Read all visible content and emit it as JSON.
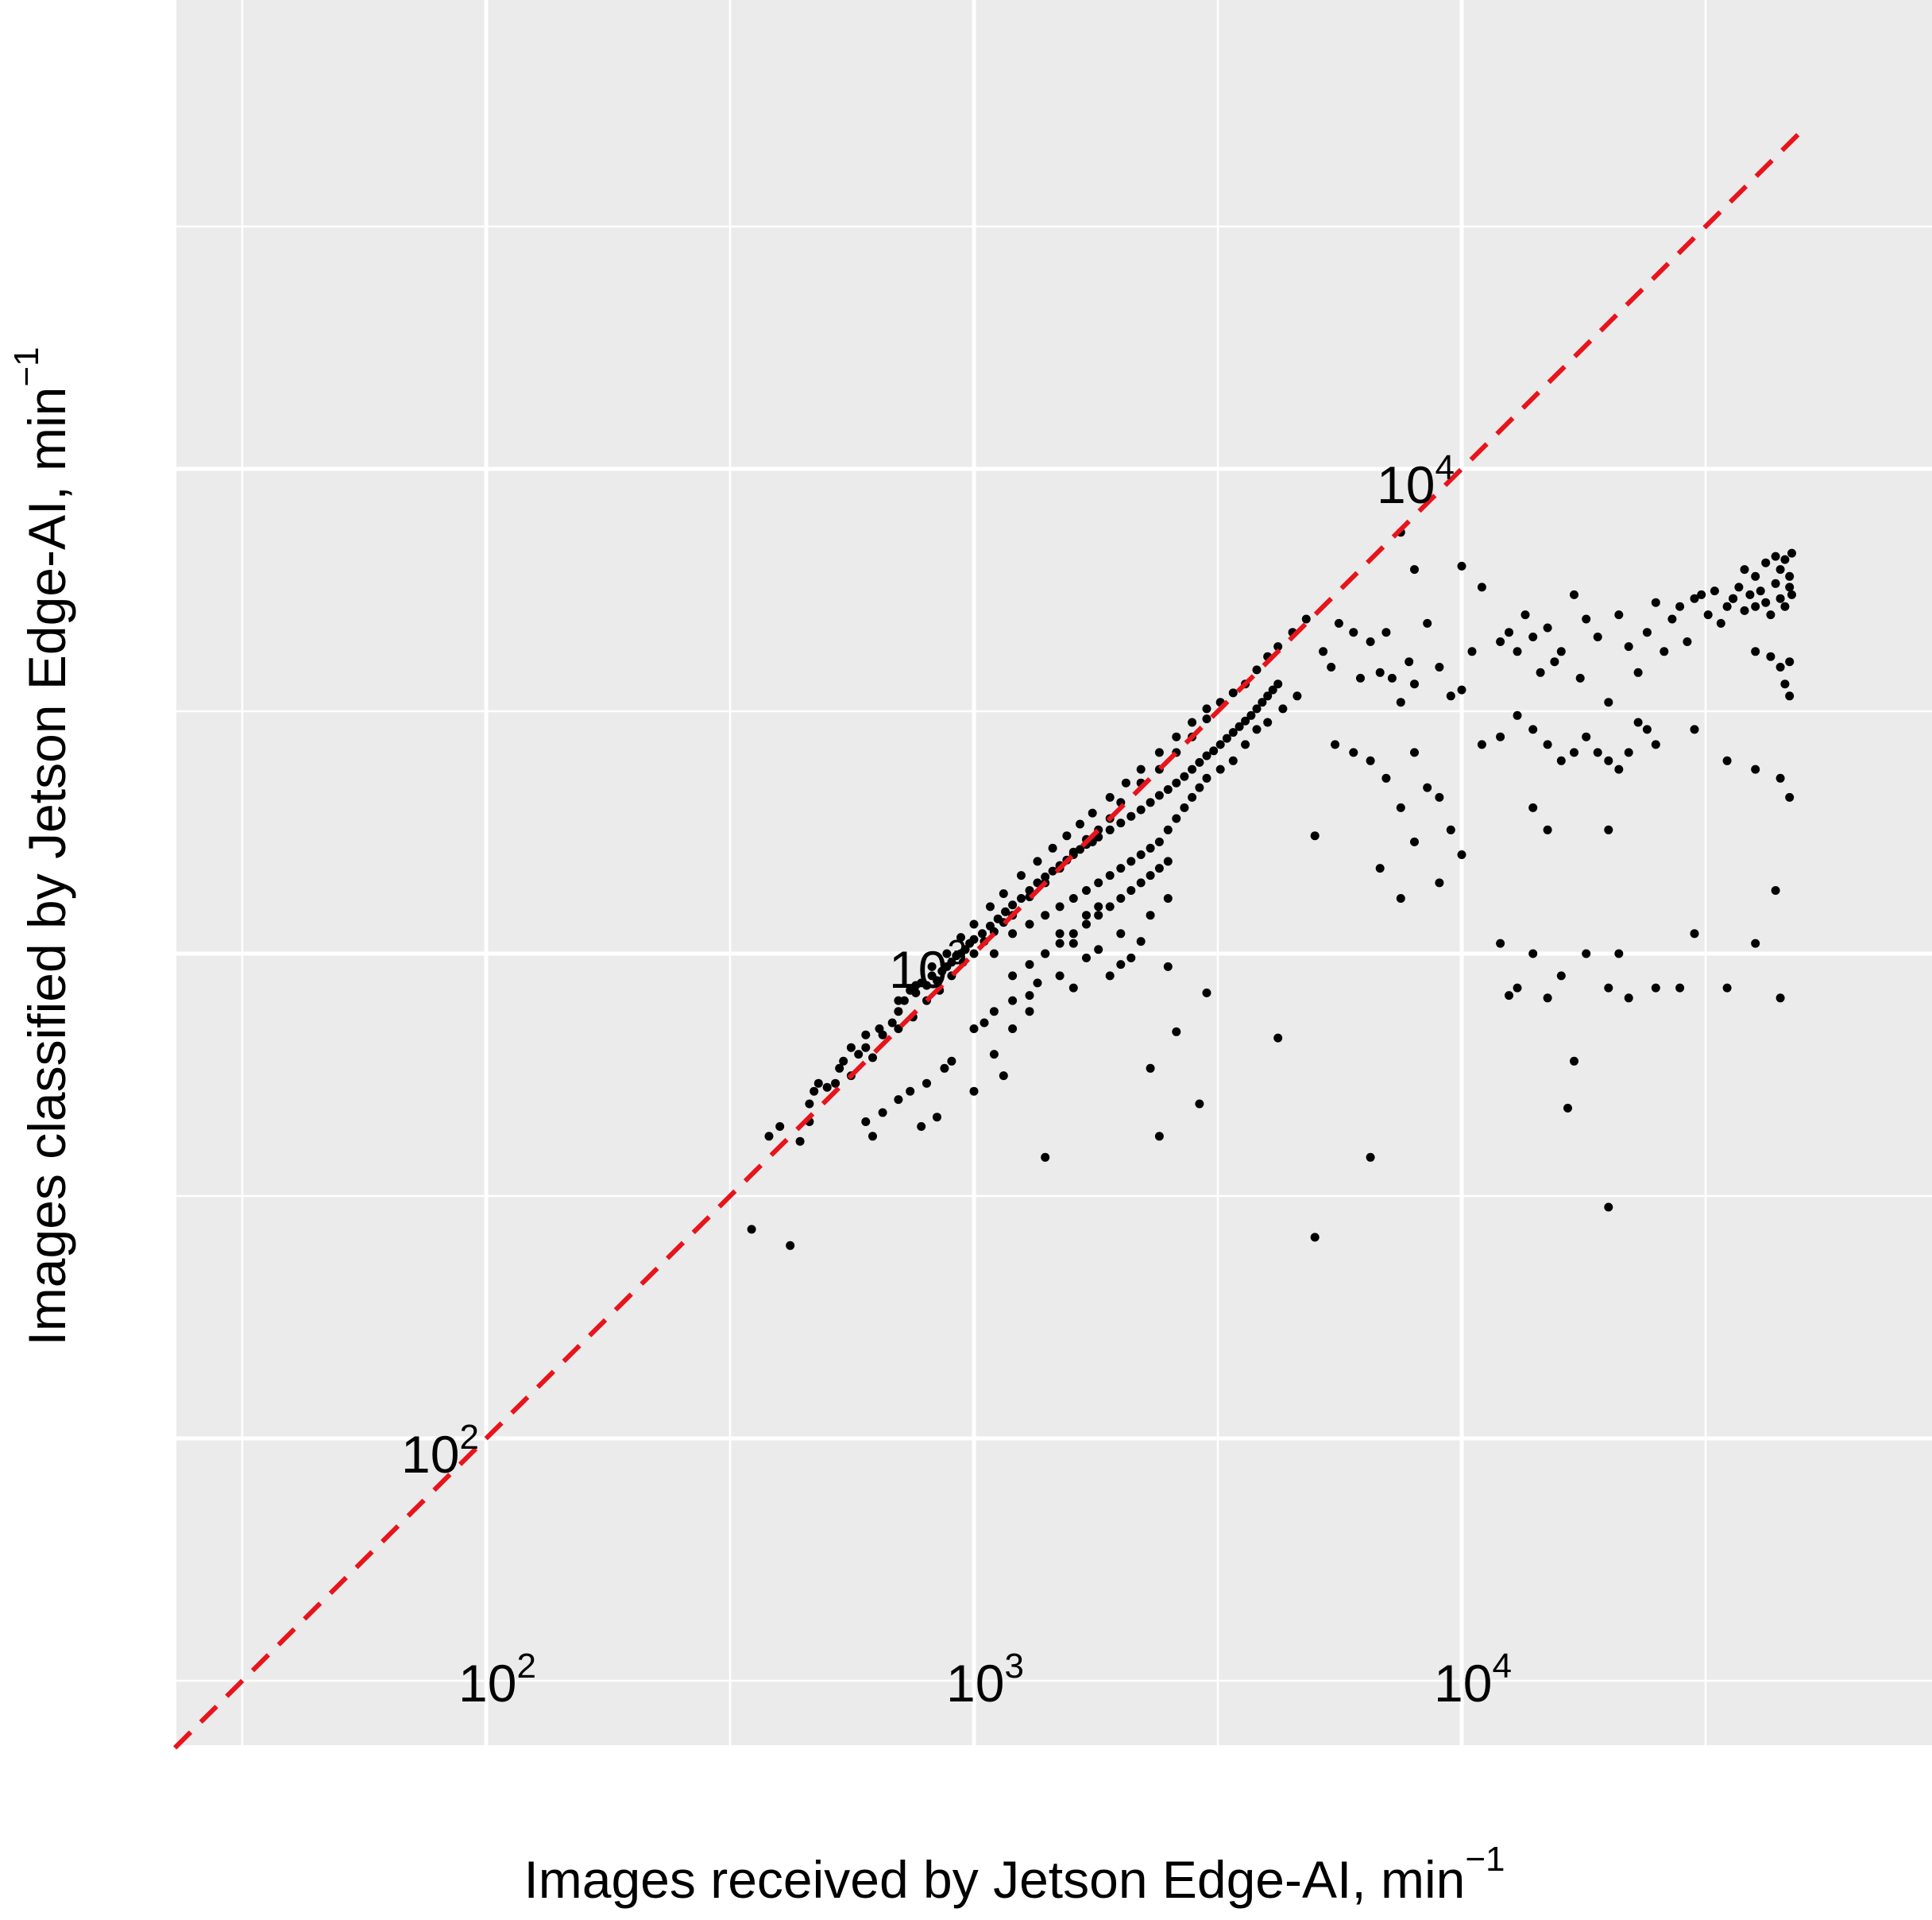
{
  "chart_data": {
    "type": "scatter",
    "xlabel": "Images received by Jetson Edge-AI, min",
    "xlabel_superscript": "−1",
    "ylabel": "Images classified by Jetson Edge-AI, min",
    "ylabel_superscript": "−1",
    "scale": {
      "x": "log10",
      "y": "log10"
    },
    "xlim": [
      23,
      50000
    ],
    "ylim": [
      23,
      50000
    ],
    "x_ticks": [
      {
        "value": 100,
        "base": "10",
        "exp": "2"
      },
      {
        "value": 1000,
        "base": "10",
        "exp": "3"
      },
      {
        "value": 10000,
        "base": "10",
        "exp": "4"
      }
    ],
    "y_ticks": [
      {
        "value": 100,
        "base": "10",
        "exp": "2"
      },
      {
        "value": 1000,
        "base": "10",
        "exp": "3"
      },
      {
        "value": 10000,
        "base": "10",
        "exp": "4"
      }
    ],
    "grid": true,
    "background": "#ebebeb",
    "grid_color": "#ffffff",
    "point_color": "#000000",
    "reference_line": {
      "label": "",
      "slope": 1,
      "style": "dashed",
      "color": "#e8141c"
    },
    "points": [
      [
        350,
        270
      ],
      [
        420,
        250
      ],
      [
        380,
        420
      ],
      [
        400,
        440
      ],
      [
        440,
        410
      ],
      [
        460,
        450
      ],
      [
        460,
        490
      ],
      [
        470,
        520
      ],
      [
        480,
        540
      ],
      [
        500,
        530
      ],
      [
        520,
        540
      ],
      [
        530,
        580
      ],
      [
        540,
        600
      ],
      [
        560,
        560
      ],
      [
        580,
        620
      ],
      [
        600,
        640
      ],
      [
        620,
        610
      ],
      [
        650,
        680
      ],
      [
        680,
        720
      ],
      [
        700,
        760
      ],
      [
        720,
        800
      ],
      [
        740,
        840
      ],
      [
        760,
        830
      ],
      [
        780,
        870
      ],
      [
        800,
        860
      ],
      [
        820,
        900
      ],
      [
        840,
        880
      ],
      [
        860,
        920
      ],
      [
        880,
        940
      ],
      [
        900,
        960
      ],
      [
        920,
        990
      ],
      [
        940,
        1000
      ],
      [
        960,
        1020
      ],
      [
        980,
        1050
      ],
      [
        1000,
        1070
      ],
      [
        1040,
        1100
      ],
      [
        1080,
        1140
      ],
      [
        1120,
        1180
      ],
      [
        1160,
        1220
      ],
      [
        1200,
        1260
      ],
      [
        1250,
        1300
      ],
      [
        1300,
        1350
      ],
      [
        1350,
        1400
      ],
      [
        1400,
        1440
      ],
      [
        1450,
        1480
      ],
      [
        1500,
        1520
      ],
      [
        1550,
        1560
      ],
      [
        1600,
        1600
      ],
      [
        1650,
        1640
      ],
      [
        1700,
        1680
      ],
      [
        1750,
        1700
      ],
      [
        1800,
        1740
      ],
      [
        1900,
        1800
      ],
      [
        2000,
        1860
      ],
      [
        2100,
        1920
      ],
      [
        2200,
        1980
      ],
      [
        2300,
        2050
      ],
      [
        2400,
        2120
      ],
      [
        2500,
        2180
      ],
      [
        2600,
        2250
      ],
      [
        2700,
        2320
      ],
      [
        2800,
        2400
      ],
      [
        2900,
        2480
      ],
      [
        3000,
        2560
      ],
      [
        3100,
        2620
      ],
      [
        3200,
        2700
      ],
      [
        3300,
        2780
      ],
      [
        3400,
        2860
      ],
      [
        3500,
        2940
      ],
      [
        3600,
        3020
      ],
      [
        3700,
        3100
      ],
      [
        3800,
        3200
      ],
      [
        3900,
        3300
      ],
      [
        4000,
        3400
      ],
      [
        4100,
        3500
      ],
      [
        4200,
        3600
      ],
      [
        700,
        700
      ],
      [
        750,
        740
      ],
      [
        800,
        800
      ],
      [
        850,
        840
      ],
      [
        900,
        900
      ],
      [
        950,
        960
      ],
      [
        1000,
        1000
      ],
      [
        1050,
        1060
      ],
      [
        1100,
        1110
      ],
      [
        1150,
        1160
      ],
      [
        1200,
        1200
      ],
      [
        1300,
        1310
      ],
      [
        1400,
        1400
      ],
      [
        1500,
        1500
      ],
      [
        1600,
        1620
      ],
      [
        1700,
        1720
      ],
      [
        1800,
        1800
      ],
      [
        1900,
        1900
      ],
      [
        2000,
        2050
      ],
      [
        2200,
        2250
      ],
      [
        2400,
        2400
      ],
      [
        2600,
        2600
      ],
      [
        2800,
        2800
      ],
      [
        3000,
        3050
      ],
      [
        3200,
        3300
      ],
      [
        3400,
        3450
      ],
      [
        3600,
        3600
      ],
      [
        3800,
        3850
      ],
      [
        4000,
        4100
      ],
      [
        4200,
        4300
      ],
      [
        4500,
        4600
      ],
      [
        4800,
        4900
      ],
      [
        560,
        640
      ],
      [
        600,
        680
      ],
      [
        640,
        700
      ],
      [
        700,
        800
      ],
      [
        760,
        860
      ],
      [
        820,
        940
      ],
      [
        880,
        1000
      ],
      [
        940,
        1080
      ],
      [
        1000,
        1150
      ],
      [
        1080,
        1250
      ],
      [
        1150,
        1330
      ],
      [
        1250,
        1450
      ],
      [
        1350,
        1550
      ],
      [
        1450,
        1650
      ],
      [
        1550,
        1750
      ],
      [
        1650,
        1850
      ],
      [
        1750,
        1950
      ],
      [
        1900,
        2100
      ],
      [
        2050,
        2250
      ],
      [
        2200,
        2400
      ],
      [
        2400,
        2600
      ],
      [
        2600,
        2800
      ],
      [
        2800,
        3000
      ],
      [
        3000,
        3200
      ],
      [
        1100,
        1000
      ],
      [
        1200,
        1100
      ],
      [
        1300,
        1150
      ],
      [
        1400,
        1200
      ],
      [
        1500,
        1250
      ],
      [
        1600,
        1300
      ],
      [
        1700,
        1350
      ],
      [
        1800,
        1400
      ],
      [
        1900,
        1450
      ],
      [
        2000,
        1500
      ],
      [
        2100,
        1550
      ],
      [
        2200,
        1600
      ],
      [
        2300,
        1650
      ],
      [
        2400,
        1700
      ],
      [
        2500,
        1800
      ],
      [
        2600,
        1900
      ],
      [
        2700,
        2000
      ],
      [
        2800,
        2100
      ],
      [
        2900,
        2200
      ],
      [
        3000,
        2300
      ],
      [
        3200,
        2400
      ],
      [
        3400,
        2500
      ],
      [
        3600,
        2700
      ],
      [
        3800,
        2900
      ],
      [
        4000,
        3000
      ],
      [
        4300,
        3200
      ],
      [
        4600,
        3400
      ],
      [
        1200,
        900
      ],
      [
        1300,
        950
      ],
      [
        1400,
        1000
      ],
      [
        1500,
        1050
      ],
      [
        1600,
        1100
      ],
      [
        1700,
        1150
      ],
      [
        1800,
        1200
      ],
      [
        1900,
        1250
      ],
      [
        2000,
        1300
      ],
      [
        2100,
        1350
      ],
      [
        2200,
        1400
      ],
      [
        2300,
        1450
      ],
      [
        2400,
        1500
      ],
      [
        2500,
        1550
      ],
      [
        600,
        450
      ],
      [
        620,
        420
      ],
      [
        650,
        470
      ],
      [
        700,
        500
      ],
      [
        740,
        520
      ],
      [
        780,
        440
      ],
      [
        800,
        540
      ],
      [
        840,
        460
      ],
      [
        870,
        580
      ],
      [
        900,
        600
      ],
      [
        1000,
        700
      ],
      [
        1050,
        720
      ],
      [
        1100,
        620
      ],
      [
        1150,
        560
      ],
      [
        1200,
        800
      ],
      [
        1300,
        820
      ],
      [
        1350,
        870
      ],
      [
        1400,
        380
      ],
      [
        1500,
        900
      ],
      [
        1600,
        850
      ],
      [
        1700,
        980
      ],
      [
        1800,
        1020
      ],
      [
        1900,
        900
      ],
      [
        2000,
        950
      ],
      [
        2100,
        980
      ],
      [
        2200,
        1060
      ],
      [
        2300,
        580
      ],
      [
        2400,
        420
      ],
      [
        2500,
        940
      ],
      [
        2600,
        690
      ],
      [
        2900,
        490
      ],
      [
        3000,
        830
      ],
      [
        4200,
        670
      ],
      [
        5000,
        1750
      ],
      [
        5000,
        260
      ],
      [
        1000,
        520
      ],
      [
        1100,
        760
      ],
      [
        1200,
        700
      ],
      [
        1300,
        760
      ],
      [
        1400,
        1000
      ],
      [
        1500,
        1100
      ],
      [
        1600,
        1050
      ],
      [
        1700,
        1200
      ],
      [
        1800,
        1250
      ],
      [
        2000,
        1100
      ],
      [
        2300,
        1200
      ],
      [
        2500,
        1300
      ],
      [
        5200,
        4200
      ],
      [
        5400,
        3900
      ],
      [
        5600,
        4800
      ],
      [
        6000,
        4600
      ],
      [
        6200,
        3700
      ],
      [
        6500,
        4400
      ],
      [
        6800,
        3800
      ],
      [
        7000,
        4600
      ],
      [
        7200,
        3700
      ],
      [
        7500,
        3300
      ],
      [
        7800,
        4000
      ],
      [
        8000,
        3600
      ],
      [
        8500,
        4800
      ],
      [
        9000,
        3900
      ],
      [
        9500,
        3400
      ],
      [
        10000,
        6300
      ],
      [
        10500,
        4200
      ],
      [
        11000,
        5700
      ],
      [
        12000,
        4400
      ],
      [
        12500,
        4600
      ],
      [
        13000,
        4200
      ],
      [
        13500,
        5000
      ],
      [
        14000,
        4500
      ],
      [
        14500,
        3800
      ],
      [
        15000,
        4700
      ],
      [
        15500,
        4000
      ],
      [
        16000,
        4200
      ],
      [
        17000,
        5500
      ],
      [
        17500,
        3700
      ],
      [
        18000,
        4900
      ],
      [
        19000,
        4500
      ],
      [
        20000,
        3300
      ],
      [
        21000,
        5000
      ],
      [
        22000,
        4300
      ],
      [
        23000,
        3800
      ],
      [
        24000,
        4600
      ],
      [
        25000,
        5300
      ],
      [
        26000,
        4200
      ],
      [
        27000,
        4900
      ],
      [
        28000,
        5200
      ],
      [
        29000,
        4400
      ],
      [
        30000,
        5400
      ],
      [
        31000,
        5500
      ],
      [
        32000,
        5000
      ],
      [
        33000,
        5600
      ],
      [
        34000,
        4800
      ],
      [
        35000,
        5200
      ],
      [
        36000,
        5400
      ],
      [
        37000,
        5700
      ],
      [
        38000,
        5100
      ],
      [
        39000,
        5500
      ],
      [
        40000,
        5200
      ],
      [
        41000,
        5600
      ],
      [
        42000,
        5300
      ],
      [
        43000,
        5000
      ],
      [
        44000,
        5800
      ],
      [
        45000,
        5400
      ],
      [
        46000,
        5200
      ],
      [
        47000,
        5700
      ],
      [
        47500,
        5500
      ],
      [
        5500,
        2700
      ],
      [
        6000,
        2600
      ],
      [
        6500,
        2500
      ],
      [
        7000,
        2300
      ],
      [
        7500,
        2000
      ],
      [
        8000,
        2600
      ],
      [
        8500,
        2200
      ],
      [
        9000,
        2100
      ],
      [
        9500,
        1800
      ],
      [
        10000,
        3500
      ],
      [
        11000,
        2700
      ],
      [
        12000,
        2800
      ],
      [
        13000,
        3100
      ],
      [
        14000,
        2900
      ],
      [
        15000,
        2700
      ],
      [
        16000,
        2500
      ],
      [
        17000,
        2600
      ],
      [
        18000,
        2800
      ],
      [
        19000,
        2600
      ],
      [
        20000,
        2500
      ],
      [
        21000,
        2400
      ],
      [
        22000,
        2600
      ],
      [
        23000,
        3000
      ],
      [
        24000,
        2900
      ],
      [
        25000,
        2700
      ],
      [
        30000,
        2900
      ],
      [
        35000,
        2500
      ],
      [
        40000,
        2400
      ],
      [
        45000,
        2300
      ],
      [
        6800,
        1500
      ],
      [
        7500,
        1300
      ],
      [
        8000,
        1700
      ],
      [
        9000,
        1400
      ],
      [
        10000,
        1600
      ],
      [
        12000,
        1050
      ],
      [
        13000,
        850
      ],
      [
        14000,
        1000
      ],
      [
        15000,
        1800
      ],
      [
        16000,
        900
      ],
      [
        17000,
        600
      ],
      [
        18000,
        1000
      ],
      [
        20000,
        850
      ],
      [
        21000,
        1000
      ],
      [
        22000,
        810
      ],
      [
        25000,
        850
      ],
      [
        28000,
        850
      ],
      [
        30000,
        1100
      ],
      [
        35000,
        850
      ],
      [
        40000,
        1050
      ],
      [
        44000,
        1350
      ],
      [
        45000,
        810
      ],
      [
        6500,
        380
      ],
      [
        12500,
        820
      ],
      [
        15000,
        810
      ],
      [
        16500,
        480
      ],
      [
        20000,
        300
      ],
      [
        14000,
        2000
      ],
      [
        20000,
        1800
      ],
      [
        8000,
        6200
      ],
      [
        7500,
        7400
      ],
      [
        36000,
        5400
      ],
      [
        40000,
        6000
      ],
      [
        45000,
        6200
      ],
      [
        47000,
        6000
      ],
      [
        47000,
        4000
      ],
      [
        47000,
        2100
      ],
      [
        38000,
        6200
      ],
      [
        42000,
        6400
      ],
      [
        44000,
        6600
      ],
      [
        46000,
        6500
      ],
      [
        47500,
        6700
      ],
      [
        40000,
        4200
      ],
      [
        43000,
        4100
      ],
      [
        45000,
        3900
      ],
      [
        46000,
        3600
      ],
      [
        47000,
        3400
      ]
    ]
  }
}
